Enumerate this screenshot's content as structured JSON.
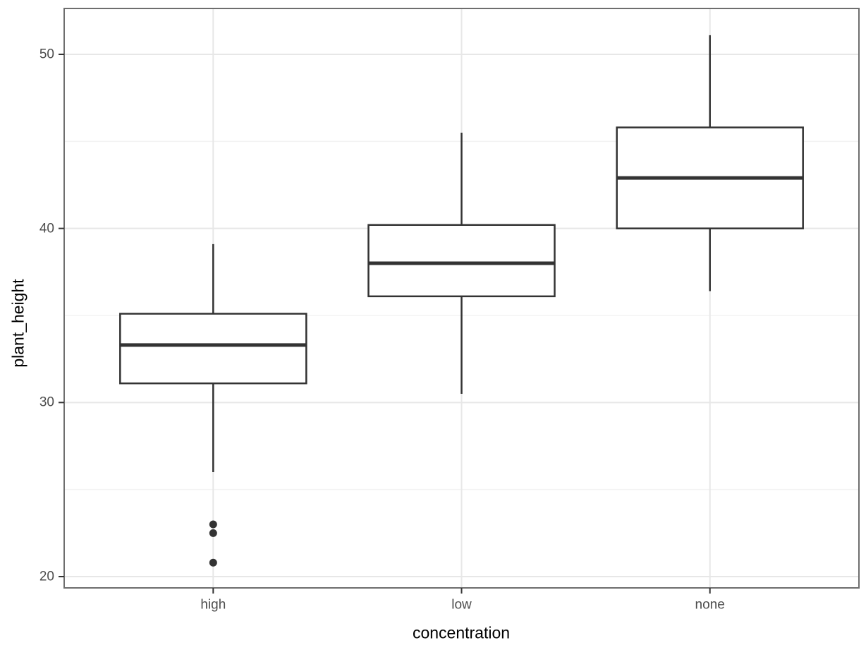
{
  "figure": {
    "background_color": "#ffffff",
    "panel_border_color": "#6e6e6e",
    "grid_major_color": "#e7e7e7",
    "grid_minor_color": "#f3f3f3",
    "axis_tick_color": "#333333",
    "tick_label_color": "#4d4d4d",
    "axis_title_color": "#000000",
    "box_stroke_color": "#333333",
    "box_fill_color": "#ffffff"
  },
  "chart_data": {
    "type": "boxplot",
    "title": "",
    "xlabel": "concentration",
    "ylabel": "plant_height",
    "categories": [
      "high",
      "low",
      "none"
    ],
    "y_axis": {
      "major_ticks": [
        20,
        30,
        40,
        50
      ],
      "minor_ticks": [
        25,
        35,
        45
      ],
      "range": [
        19.3,
        52.6
      ]
    },
    "grid": true,
    "legend": false,
    "series": [
      {
        "category": "high",
        "whisker_low": 26.0,
        "q1": 31.1,
        "median": 33.3,
        "q3": 35.1,
        "whisker_high": 39.1,
        "outliers": [
          23.0,
          22.5,
          20.8
        ]
      },
      {
        "category": "low",
        "whisker_low": 30.5,
        "q1": 36.1,
        "median": 38.0,
        "q3": 40.2,
        "whisker_high": 45.5,
        "outliers": []
      },
      {
        "category": "none",
        "whisker_low": 36.4,
        "q1": 40.0,
        "median": 42.9,
        "q3": 45.8,
        "whisker_high": 51.1,
        "outliers": []
      }
    ]
  }
}
